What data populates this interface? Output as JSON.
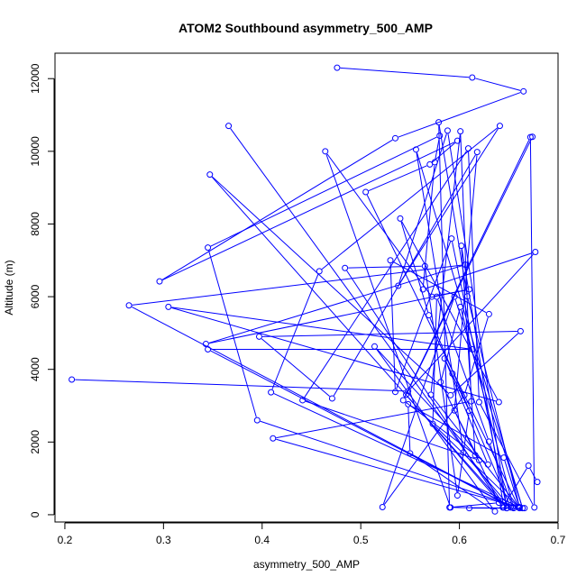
{
  "chart_data": {
    "type": "scatter",
    "mode": "lines+markers",
    "title": "ATOM2 Southbound asymmetry_500_AMP",
    "xlabel": "asymmetry_500_AMP",
    "ylabel": "Altitude (m)",
    "xlim": [
      0.19,
      0.7
    ],
    "ylim": [
      -200,
      12700
    ],
    "xticks": [
      0.2,
      0.3,
      0.4,
      0.5,
      0.6,
      0.7
    ],
    "xtick_labels": [
      "0.2",
      "0.3",
      "0.4",
      "0.5",
      "0.6",
      "0.7"
    ],
    "yticks": [
      0,
      2000,
      4000,
      6000,
      8000,
      10000,
      12000
    ],
    "ytick_labels": [
      "0",
      "2000",
      "4000",
      "6000",
      "8000",
      "10000",
      "12000"
    ],
    "grid": false,
    "color": "#0000ff",
    "series": [
      {
        "x": [
          0.476,
          0.613,
          0.665,
          0.535,
          0.296,
          0.598,
          0.57,
          0.505,
          0.66,
          0.409,
          0.458,
          0.641,
          0.538,
          0.588,
          0.648,
          0.592,
          0.535,
          0.53,
          0.63,
          0.605,
          0.522,
          0.595,
          0.664,
          0.556,
          0.593,
          0.604,
          0.652,
          0.569,
          0.54,
          0.64,
          0.305,
          0.613,
          0.345,
          0.655,
          0.601,
          0.581,
          0.64,
          0.59,
          0.579,
          0.608,
          0.661,
          0.645,
          0.548,
          0.55,
          0.636,
          0.514,
          0.616,
          0.602,
          0.645,
          0.546,
          0.674
        ],
        "y": [
          12300,
          12030,
          11650,
          10360,
          6420,
          10290,
          9640,
          8880,
          220,
          3370,
          6700,
          10700,
          6300,
          10570,
          180,
          7600,
          3380,
          7000,
          5520,
          3290,
          210,
          6000,
          180,
          10050,
          3880,
          1710,
          200,
          5490,
          8150,
          3100,
          5720,
          4550,
          4550,
          180,
          5720,
          3650,
          330,
          200,
          10800,
          6010,
          200,
          1570,
          3040,
          1690,
          90,
          4630,
          1640,
          7400,
          200,
          3300,
          10400
        ]
      },
      {
        "x": [
          0.366,
          0.648,
          0.347,
          0.591,
          0.662,
          0.397,
          0.471,
          0.618,
          0.595,
          0.62,
          0.441,
          0.609,
          0.62,
          0.676,
          0.672,
          0.543,
          0.629,
          0.585,
          0.61,
          0.598,
          0.565,
          0.484,
          0.644,
          0.67,
          0.679
        ],
        "y": [
          10700,
          180,
          9360,
          3290,
          5050,
          4900,
          3200,
          9980,
          2870,
          1500,
          3150,
          10080,
          3100,
          200,
          10390,
          3150,
          1380,
          4300,
          2860,
          530,
          6840,
          6790,
          200,
          1350,
          900
        ]
      },
      {
        "x": [
          0.207,
          0.548,
          0.677,
          0.563,
          0.575,
          0.58,
          0.345,
          0.395,
          0.66,
          0.411,
          0.612,
          0.601,
          0.571,
          0.661,
          0.573,
          0.577,
          0.63,
          0.654,
          0.265,
          0.606,
          0.343,
          0.61,
          0.572,
          0.464,
          0.591,
          0.666,
          0.61
        ],
        "y": [
          3720,
          3400,
          7230,
          6200,
          9700,
          10430,
          7350,
          2600,
          200,
          2100,
          3120,
          10550,
          3300,
          180,
          2500,
          6000,
          2010,
          200,
          5760,
          6880,
          4700,
          6200,
          6000,
          10000,
          200,
          180,
          180
        ]
      }
    ]
  }
}
